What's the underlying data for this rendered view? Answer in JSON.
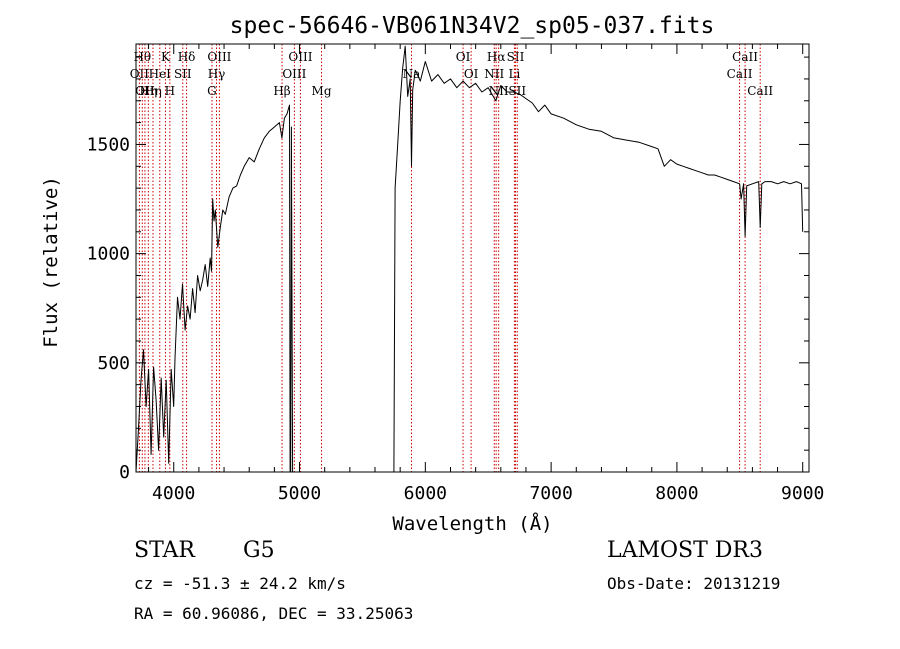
{
  "chart_data": {
    "type": "line",
    "title": "spec-56646-VB061N34V2_sp05-037.fits",
    "xlabel": "Wavelength (Å)",
    "ylabel": "Flux (relative)",
    "xlim": [
      3700,
      9050
    ],
    "ylim": [
      0,
      1960
    ],
    "xticks": [
      4000,
      5000,
      6000,
      7000,
      8000,
      9000
    ],
    "yticks": [
      0,
      500,
      1000,
      1500
    ],
    "series": [
      {
        "name": "flux",
        "points": [
          [
            3700,
            0
          ],
          [
            3720,
            200
          ],
          [
            3740,
            420
          ],
          [
            3760,
            560
          ],
          [
            3780,
            300
          ],
          [
            3800,
            470
          ],
          [
            3820,
            80
          ],
          [
            3840,
            480
          ],
          [
            3860,
            330
          ],
          [
            3880,
            100
          ],
          [
            3900,
            430
          ],
          [
            3920,
            160
          ],
          [
            3940,
            420
          ],
          [
            3960,
            40
          ],
          [
            3980,
            470
          ],
          [
            4000,
            300
          ],
          [
            4010,
            520
          ],
          [
            4030,
            800
          ],
          [
            4050,
            700
          ],
          [
            4070,
            860
          ],
          [
            4090,
            650
          ],
          [
            4110,
            760
          ],
          [
            4130,
            700
          ],
          [
            4150,
            840
          ],
          [
            4170,
            730
          ],
          [
            4190,
            900
          ],
          [
            4210,
            830
          ],
          [
            4230,
            880
          ],
          [
            4250,
            950
          ],
          [
            4270,
            850
          ],
          [
            4290,
            980
          ],
          [
            4300,
            920
          ],
          [
            4310,
            1250
          ],
          [
            4320,
            1150
          ],
          [
            4330,
            1200
          ],
          [
            4350,
            1030
          ],
          [
            4370,
            1120
          ],
          [
            4390,
            1200
          ],
          [
            4410,
            1180
          ],
          [
            4440,
            1260
          ],
          [
            4470,
            1300
          ],
          [
            4500,
            1310
          ],
          [
            4530,
            1360
          ],
          [
            4560,
            1400
          ],
          [
            4600,
            1440
          ],
          [
            4640,
            1420
          ],
          [
            4680,
            1480
          ],
          [
            4720,
            1530
          ],
          [
            4760,
            1560
          ],
          [
            4800,
            1580
          ],
          [
            4840,
            1600
          ],
          [
            4860,
            1530
          ],
          [
            4880,
            1620
          ],
          [
            4900,
            1640
          ],
          [
            4920,
            1680
          ],
          [
            4925,
            0
          ],
          [
            4930,
            0
          ],
          [
            4935,
            1580
          ],
          [
            4945,
            0
          ],
          [
            5100,
            0
          ],
          [
            5200,
            0
          ],
          [
            5400,
            0
          ],
          [
            5600,
            0
          ],
          [
            5750,
            0
          ],
          [
            5760,
            1300
          ],
          [
            5780,
            1500
          ],
          [
            5800,
            1700
          ],
          [
            5820,
            1850
          ],
          [
            5840,
            1950
          ],
          [
            5860,
            1720
          ],
          [
            5880,
            1800
          ],
          [
            5890,
            1400
          ],
          [
            5900,
            1750
          ],
          [
            5920,
            1840
          ],
          [
            5960,
            1790
          ],
          [
            6000,
            1880
          ],
          [
            6050,
            1790
          ],
          [
            6100,
            1820
          ],
          [
            6150,
            1780
          ],
          [
            6200,
            1800
          ],
          [
            6250,
            1760
          ],
          [
            6300,
            1790
          ],
          [
            6350,
            1760
          ],
          [
            6400,
            1780
          ],
          [
            6450,
            1740
          ],
          [
            6500,
            1760
          ],
          [
            6560,
            1700
          ],
          [
            6600,
            1770
          ],
          [
            6650,
            1740
          ],
          [
            6700,
            1740
          ],
          [
            6750,
            1730
          ],
          [
            6800,
            1710
          ],
          [
            6850,
            1690
          ],
          [
            6900,
            1650
          ],
          [
            6950,
            1680
          ],
          [
            7000,
            1640
          ],
          [
            7100,
            1620
          ],
          [
            7200,
            1590
          ],
          [
            7300,
            1570
          ],
          [
            7400,
            1560
          ],
          [
            7500,
            1530
          ],
          [
            7600,
            1520
          ],
          [
            7700,
            1510
          ],
          [
            7800,
            1490
          ],
          [
            7850,
            1480
          ],
          [
            7900,
            1400
          ],
          [
            7950,
            1430
          ],
          [
            8000,
            1410
          ],
          [
            8050,
            1400
          ],
          [
            8100,
            1390
          ],
          [
            8150,
            1380
          ],
          [
            8200,
            1370
          ],
          [
            8250,
            1360
          ],
          [
            8300,
            1360
          ],
          [
            8350,
            1350
          ],
          [
            8400,
            1340
          ],
          [
            8450,
            1330
          ],
          [
            8498,
            1320
          ],
          [
            8510,
            1250
          ],
          [
            8530,
            1320
          ],
          [
            8542,
            1080
          ],
          [
            8555,
            1310
          ],
          [
            8600,
            1320
          ],
          [
            8650,
            1330
          ],
          [
            8662,
            1120
          ],
          [
            8675,
            1320
          ],
          [
            8700,
            1330
          ],
          [
            8750,
            1330
          ],
          [
            8800,
            1320
          ],
          [
            8850,
            1330
          ],
          [
            8900,
            1320
          ],
          [
            8950,
            1330
          ],
          [
            8990,
            1320
          ],
          [
            9000,
            1100
          ]
        ]
      }
    ],
    "emission_lines": [
      {
        "wave": 3727,
        "label": "OII",
        "row": 1
      },
      {
        "wave": 3750,
        "label": "Hθ",
        "row": 0
      },
      {
        "wave": 3771,
        "label": "OII",
        "row": 2
      },
      {
        "wave": 3798,
        "label": "Hη",
        "row": 2
      },
      {
        "wave": 3835,
        "label": "Hη",
        "row": 2
      },
      {
        "wave": 3889,
        "label": "HeI",
        "row": 1
      },
      {
        "wave": 3934,
        "label": "K",
        "row": 0
      },
      {
        "wave": 3969,
        "label": "H",
        "row": 2
      },
      {
        "wave": 4072,
        "label": "SII",
        "row": 1
      },
      {
        "wave": 4102,
        "label": "Hδ",
        "row": 0
      },
      {
        "wave": 4304,
        "label": "G",
        "row": 2
      },
      {
        "wave": 4340,
        "label": "Hγ",
        "row": 1
      },
      {
        "wave": 4363,
        "label": "OIII",
        "row": 0
      },
      {
        "wave": 4861,
        "label": "Hβ",
        "row": 2
      },
      {
        "wave": 4959,
        "label": "OIII",
        "row": 1
      },
      {
        "wave": 5007,
        "label": "OIII",
        "row": 0
      },
      {
        "wave": 5175,
        "label": "Mg",
        "row": 2
      },
      {
        "wave": 5890,
        "label": "Na",
        "row": 1
      },
      {
        "wave": 6300,
        "label": "OI",
        "row": 0
      },
      {
        "wave": 6364,
        "label": "OI",
        "row": 1
      },
      {
        "wave": 6548,
        "label": "NII",
        "row": 1
      },
      {
        "wave": 6563,
        "label": "Hα",
        "row": 0
      },
      {
        "wave": 6583,
        "label": "NII",
        "row": 2
      },
      {
        "wave": 6708,
        "label": "Li",
        "row": 1
      },
      {
        "wave": 6717,
        "label": "SII",
        "row": 0
      },
      {
        "wave": 6731,
        "label": "SII",
        "row": 2
      },
      {
        "wave": 8498,
        "label": "CaII",
        "row": 1
      },
      {
        "wave": 8542,
        "label": "CaII",
        "row": 0
      },
      {
        "wave": 8662,
        "label": "CaII",
        "row": 2
      }
    ]
  },
  "info": {
    "object_class": "STAR",
    "subclass": "G5",
    "survey": "LAMOST DR3",
    "redshift": "cz = -51.3 ± 24.2 km/s",
    "obs_date": "Obs-Date: 20131219",
    "coords": "RA =  60.96086, DEC =  33.25063"
  },
  "colors": {
    "axis": "#000000",
    "spectrum": "#000000",
    "line_marker": "#cc0000"
  }
}
